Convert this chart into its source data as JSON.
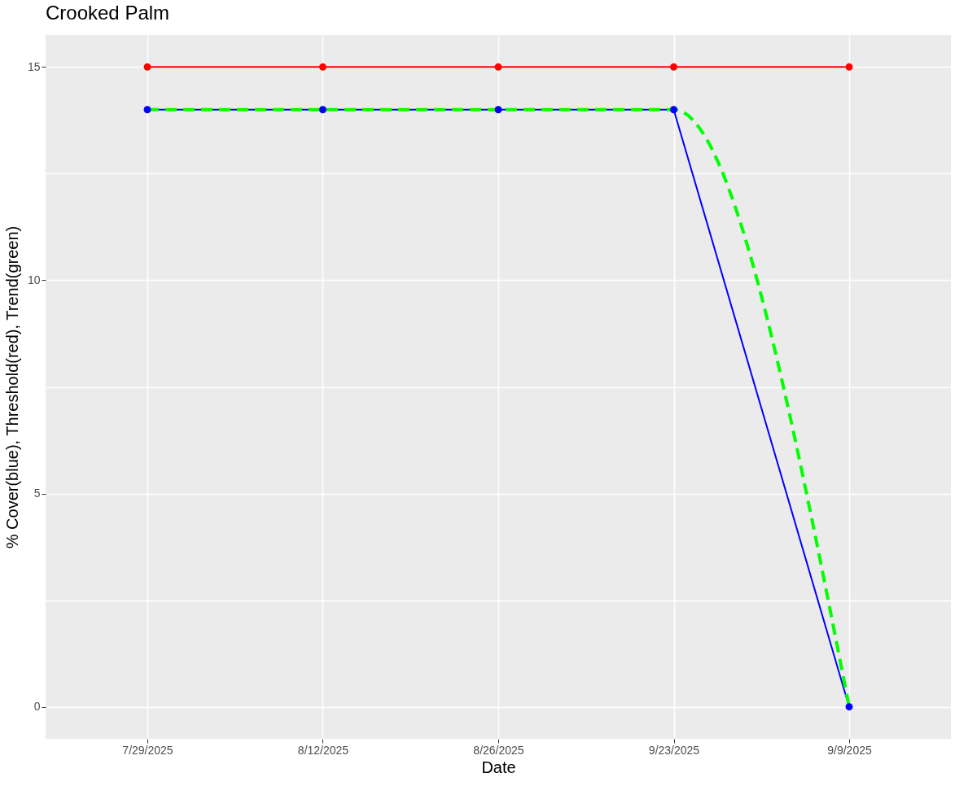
{
  "chart_data": {
    "type": "line",
    "title": "Crooked Palm",
    "xlabel": "Date",
    "ylabel": "% Cover(blue), Threshold(red), Trend(green)",
    "categories": [
      "7/29/2025",
      "8/12/2025",
      "8/26/2025",
      "9/23/2025",
      "9/9/2025"
    ],
    "series": [
      {
        "color": "#ff0000",
        "values": [
          15,
          15,
          15,
          15,
          15
        ],
        "marker": "circle",
        "line_style": "solid"
      },
      {
        "color": "#0000ff",
        "values": [
          14,
          14,
          14,
          14,
          0
        ],
        "marker": "circle",
        "line_style": "solid"
      },
      {
        "color": "#00ff00",
        "values": [
          14,
          14,
          14,
          14,
          0
        ],
        "marker": "none",
        "line_style": "dashed"
      }
    ],
    "ylim": [
      -0.75,
      15.75
    ],
    "yticks": [
      0,
      {
        "value": 2.5,
        "label": null
      },
      5,
      {
        "value": 7.5,
        "label": null
      },
      10,
      {
        "value": 12.5,
        "label": null
      },
      15
    ],
    "grid": true
  }
}
